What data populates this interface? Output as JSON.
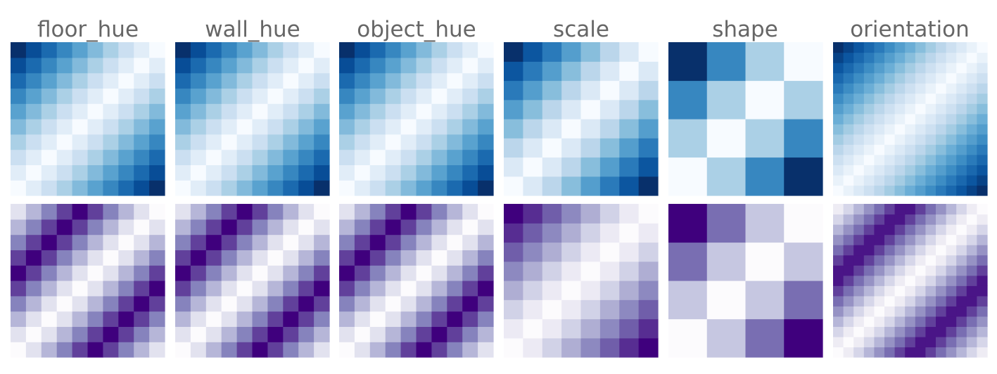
{
  "chart_data": [
    {
      "type": "heatmap",
      "title": "floor_hue",
      "size": 10,
      "metric": "linear",
      "colormap": "Blues"
    },
    {
      "type": "heatmap",
      "title": "wall_hue",
      "size": 10,
      "metric": "linear",
      "colormap": "Blues"
    },
    {
      "type": "heatmap",
      "title": "object_hue",
      "size": 10,
      "metric": "linear",
      "colormap": "Blues"
    },
    {
      "type": "heatmap",
      "title": "scale",
      "size": 8,
      "metric": "linear",
      "colormap": "Blues"
    },
    {
      "type": "heatmap",
      "title": "shape",
      "size": 4,
      "metric": "linear",
      "colormap": "Blues"
    },
    {
      "type": "heatmap",
      "title": "orientation",
      "size": 15,
      "metric": "linear",
      "colormap": "Blues"
    },
    {
      "type": "heatmap",
      "title": "",
      "size": 10,
      "metric": "circular",
      "colormap": "Purples"
    },
    {
      "type": "heatmap",
      "title": "",
      "size": 10,
      "metric": "circular",
      "colormap": "Purples"
    },
    {
      "type": "heatmap",
      "title": "",
      "size": 10,
      "metric": "circular",
      "colormap": "Purples"
    },
    {
      "type": "heatmap",
      "title": "",
      "size": 8,
      "metric": "linear",
      "colormap": "Purples"
    },
    {
      "type": "heatmap",
      "title": "",
      "size": 4,
      "metric": "linear",
      "colormap": "Purples"
    },
    {
      "type": "heatmap",
      "title": "",
      "size": 15,
      "metric": "circular",
      "colormap": "Purples"
    }
  ],
  "colormaps": {
    "Blues": [
      "#f7fbff",
      "#deebf7",
      "#c6dbef",
      "#9ecae1",
      "#6baed6",
      "#4292c6",
      "#2171b5",
      "#08519c",
      "#08306b"
    ],
    "Purples": [
      "#fcfbfd",
      "#efedf5",
      "#dadaeb",
      "#bcbddc",
      "#9e9ac8",
      "#807dba",
      "#6a51a3",
      "#54278f",
      "#3f007d"
    ]
  }
}
